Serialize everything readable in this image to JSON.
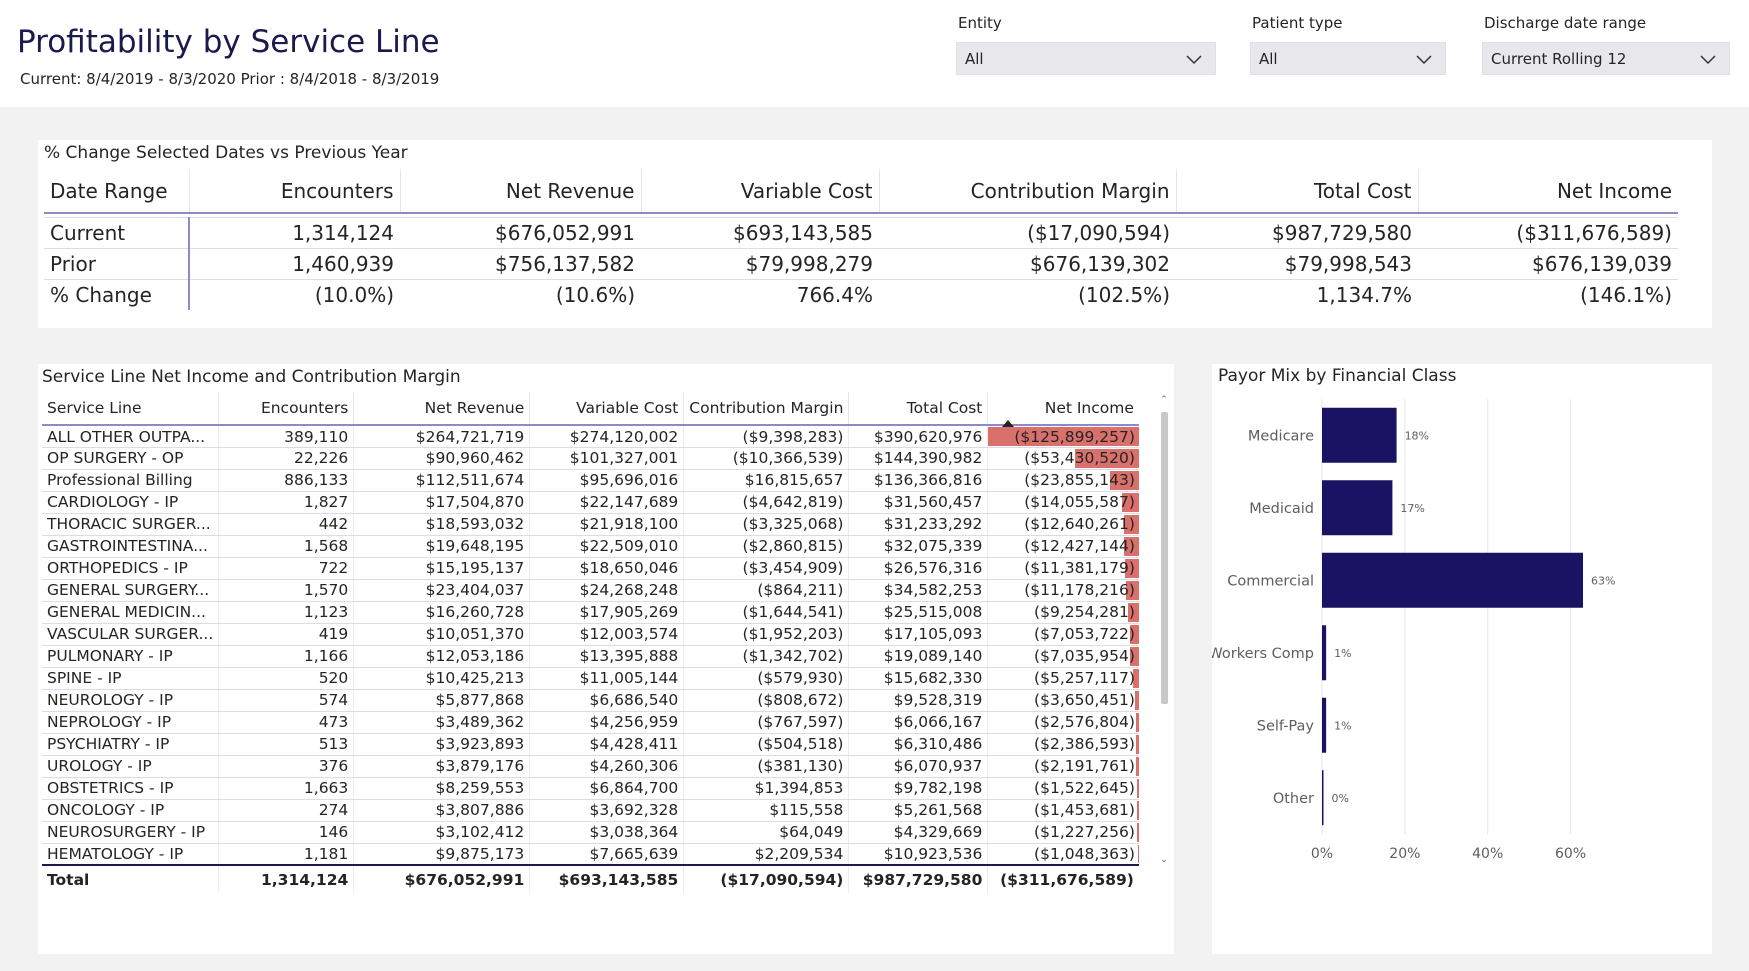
{
  "header": {
    "title": "Profitability by Service Line",
    "subtitle": "Current: 8/4/2019 - 8/3/2020 Prior : 8/4/2018 - 8/3/2019"
  },
  "filters": {
    "entity": {
      "label": "Entity",
      "value": "All"
    },
    "patient_type": {
      "label": "Patient type",
      "value": "All"
    },
    "discharge_date": {
      "label": "Discharge date range",
      "value": "Current Rolling 12"
    }
  },
  "summary": {
    "title": "% Change Selected Dates vs Previous Year",
    "columns": [
      "Date Range",
      "Encounters",
      "Net Revenue",
      "Variable Cost",
      "Contribution Margin",
      "Total Cost",
      "Net Income"
    ],
    "rows": [
      [
        "Current",
        "1,314,124",
        "$676,052,991",
        "$693,143,585",
        "($17,090,594)",
        "$987,729,580",
        "($311,676,589)"
      ],
      [
        "Prior",
        "1,460,939",
        "$756,137,582",
        "$79,998,279",
        "$676,139,302",
        "$79,998,543",
        "$676,139,039"
      ],
      [
        "% Change",
        "(10.0%)",
        "(10.6%)",
        "766.4%",
        "(102.5%)",
        "1,134.7%",
        "(146.1%)"
      ]
    ]
  },
  "service_lines": {
    "title": "Service Line Net Income and Contribution Margin",
    "columns": [
      "Service Line",
      "Encounters",
      "Net Revenue",
      "Variable Cost",
      "Contribution Margin",
      "Total Cost",
      "Net Income"
    ],
    "rows": [
      [
        "ALL OTHER OUTPA...",
        "389,110",
        "$264,721,719",
        "$274,120,002",
        "($9,398,283)",
        "$390,620,976",
        "($125,899,257)"
      ],
      [
        "OP SURGERY - OP",
        "22,226",
        "$90,960,462",
        "$101,327,001",
        "($10,366,539)",
        "$144,390,982",
        "($53,430,520)"
      ],
      [
        "Professional Billing",
        "886,133",
        "$112,511,674",
        "$95,696,016",
        "$16,815,657",
        "$136,366,816",
        "($23,855,143)"
      ],
      [
        "CARDIOLOGY - IP",
        "1,827",
        "$17,504,870",
        "$22,147,689",
        "($4,642,819)",
        "$31,560,457",
        "($14,055,587)"
      ],
      [
        "THORACIC SURGER...",
        "442",
        "$18,593,032",
        "$21,918,100",
        "($3,325,068)",
        "$31,233,292",
        "($12,640,261)"
      ],
      [
        "GASTROINTESTINA...",
        "1,568",
        "$19,648,195",
        "$22,509,010",
        "($2,860,815)",
        "$32,075,339",
        "($12,427,144)"
      ],
      [
        "ORTHOPEDICS - IP",
        "722",
        "$15,195,137",
        "$18,650,046",
        "($3,454,909)",
        "$26,576,316",
        "($11,381,179)"
      ],
      [
        "GENERAL SURGERY...",
        "1,570",
        "$23,404,037",
        "$24,268,248",
        "($864,211)",
        "$34,582,253",
        "($11,178,216)"
      ],
      [
        "GENERAL MEDICIN...",
        "1,123",
        "$16,260,728",
        "$17,905,269",
        "($1,644,541)",
        "$25,515,008",
        "($9,254,281)"
      ],
      [
        "VASCULAR SURGER...",
        "419",
        "$10,051,370",
        "$12,003,574",
        "($1,952,203)",
        "$17,105,093",
        "($7,053,722)"
      ],
      [
        "PULMONARY - IP",
        "1,166",
        "$12,053,186",
        "$13,395,888",
        "($1,342,702)",
        "$19,089,140",
        "($7,035,954)"
      ],
      [
        "SPINE - IP",
        "520",
        "$10,425,213",
        "$11,005,144",
        "($579,930)",
        "$15,682,330",
        "($5,257,117)"
      ],
      [
        "NEUROLOGY - IP",
        "574",
        "$5,877,868",
        "$6,686,540",
        "($808,672)",
        "$9,528,319",
        "($3,650,451)"
      ],
      [
        "NEPROLOGY - IP",
        "473",
        "$3,489,362",
        "$4,256,959",
        "($767,597)",
        "$6,066,167",
        "($2,576,804)"
      ],
      [
        "PSYCHIATRY - IP",
        "513",
        "$3,923,893",
        "$4,428,411",
        "($504,518)",
        "$6,310,486",
        "($2,386,593)"
      ],
      [
        "UROLOGY - IP",
        "376",
        "$3,879,176",
        "$4,260,306",
        "($381,130)",
        "$6,070,937",
        "($2,191,761)"
      ],
      [
        "OBSTETRICS - IP",
        "1,663",
        "$8,259,553",
        "$6,864,700",
        "$1,394,853",
        "$9,782,198",
        "($1,522,645)"
      ],
      [
        "ONCOLOGY - IP",
        "274",
        "$3,807,886",
        "$3,692,328",
        "$115,558",
        "$5,261,568",
        "($1,453,681)"
      ],
      [
        "NEUROSURGERY - IP",
        "146",
        "$3,102,412",
        "$3,038,364",
        "$64,049",
        "$4,329,669",
        "($1,227,256)"
      ],
      [
        "HEMATOLOGY - IP",
        "1,181",
        "$9,875,173",
        "$7,665,639",
        "$2,209,534",
        "$10,923,536",
        "($1,048,363)"
      ]
    ],
    "net_income_values": [
      -125899257,
      -53430520,
      -23855143,
      -14055587,
      -12640261,
      -12427144,
      -11381179,
      -11178216,
      -9254281,
      -7053722,
      -7035954,
      -5257117,
      -3650451,
      -2576804,
      -2386593,
      -2191761,
      -1522645,
      -1453681,
      -1227256,
      -1048363
    ],
    "total": [
      "Total",
      "1,314,124",
      "$676,052,991",
      "$693,143,585",
      "($17,090,594)",
      "$987,729,580",
      "($311,676,589)"
    ],
    "bar_color": "#d9706c"
  },
  "payor_mix": {
    "title": "Payor Mix by Financial Class",
    "chart_data": {
      "type": "bar",
      "orientation": "horizontal",
      "title": "Payor Mix by Financial Class",
      "categories": [
        "Medicare",
        "Medicaid",
        "Commercial",
        "Workers Comp",
        "Self-Pay",
        "Other"
      ],
      "values": [
        18,
        17,
        63,
        1,
        1,
        0
      ],
      "data_labels": [
        "18%",
        "17%",
        "63%",
        "1%",
        "1%",
        "0%"
      ],
      "xlim": [
        0,
        70
      ],
      "xticks": [
        0,
        20,
        40,
        60
      ],
      "xtick_labels": [
        "0%",
        "20%",
        "40%",
        "60%"
      ],
      "grid": true,
      "color": "#1a1364"
    }
  }
}
